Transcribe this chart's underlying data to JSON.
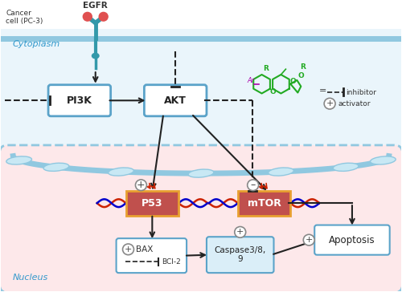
{
  "bg_color": "#ffffff",
  "cyto_color": "#eaf5fb",
  "nucleus_color": "#fde8ea",
  "membrane_color": "#90c8e0",
  "box_border_color": "#5ba3c9",
  "p53_box_color": "#c0504d",
  "mtor_box_color": "#c0504d",
  "caspase_box_color": "#daeef8",
  "title_cytoplasm": "Cytoplasm",
  "title_nucleus": "Nucleus",
  "egfr_label": "EGFR",
  "cancer_label": "Cancer\ncell (PC-3)",
  "pi3k_label": "PI3K",
  "akt_label": "AKT",
  "p53_label": "P53",
  "mtor_label": "mTOR",
  "apoptosis_label": "Apoptosis",
  "caspase_label": "Caspase3/8,\n9",
  "inhibitor_label": "inhibitor",
  "activator_label": "activator",
  "arrow_color": "#222222",
  "receptor_color": "#3399aa",
  "red_dot_color": "#e05050",
  "dna_red": "#cc2200",
  "dna_blue": "#0000cc",
  "small_arrow_color": "#cc2200",
  "green_color": "#22aa22",
  "purple_color": "#aa00aa"
}
